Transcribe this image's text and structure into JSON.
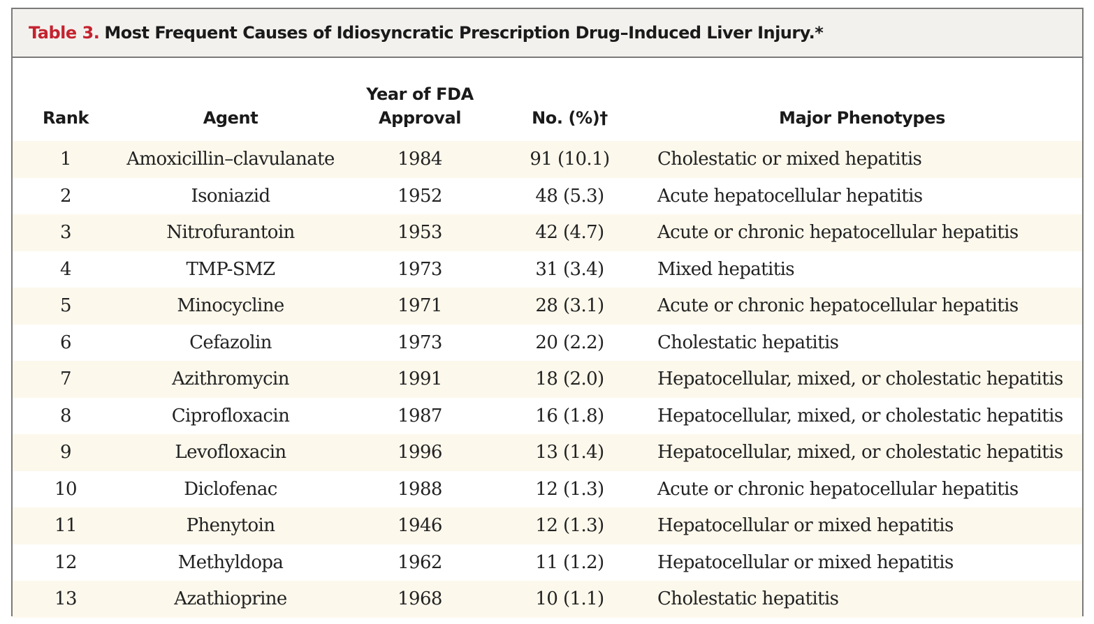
{
  "table": {
    "label": "Table 3.",
    "title": "Most Frequent Causes of Idiosyncratic Prescription Drug–Induced Liver Injury.*",
    "headers": {
      "rank": "Rank",
      "agent": "Agent",
      "year_line1": "Year of FDA",
      "year_line2": "Approval",
      "no": "No. (%)†",
      "phenotypes": "Major Phenotypes"
    },
    "rows": [
      {
        "rank": "1",
        "agent": "Amoxicillin–clavulanate",
        "year": "1984",
        "no": "91 (10.1)",
        "phenotype": "Cholestatic or mixed hepatitis"
      },
      {
        "rank": "2",
        "agent": "Isoniazid",
        "year": "1952",
        "no": "48 (5.3)",
        "phenotype": "Acute hepatocellular hepatitis"
      },
      {
        "rank": "3",
        "agent": "Nitrofurantoin",
        "year": "1953",
        "no": "42 (4.7)",
        "phenotype": "Acute or chronic hepatocellular hepatitis"
      },
      {
        "rank": "4",
        "agent": "TMP-SMZ",
        "year": "1973",
        "no": "31 (3.4)",
        "phenotype": "Mixed hepatitis"
      },
      {
        "rank": "5",
        "agent": "Minocycline",
        "year": "1971",
        "no": "28 (3.1)",
        "phenotype": "Acute or chronic hepatocellular hepatitis"
      },
      {
        "rank": "6",
        "agent": "Cefazolin",
        "year": "1973",
        "no": "20 (2.2)",
        "phenotype": "Cholestatic hepatitis"
      },
      {
        "rank": "7",
        "agent": "Azithromycin",
        "year": "1991",
        "no": "18 (2.0)",
        "phenotype": "Hepatocellular, mixed, or cholestatic hepatitis"
      },
      {
        "rank": "8",
        "agent": "Ciprofloxacin",
        "year": "1987",
        "no": "16 (1.8)",
        "phenotype": "Hepatocellular, mixed, or cholestatic hepatitis"
      },
      {
        "rank": "9",
        "agent": "Levofloxacin",
        "year": "1996",
        "no": "13 (1.4)",
        "phenotype": "Hepatocellular, mixed, or cholestatic hepatitis"
      },
      {
        "rank": "10",
        "agent": "Diclofenac",
        "year": "1988",
        "no": "12 (1.3)",
        "phenotype": "Acute or chronic hepatocellular hepatitis"
      },
      {
        "rank": "11",
        "agent": "Phenytoin",
        "year": "1946",
        "no": "12 (1.3)",
        "phenotype": "Hepatocellular or mixed hepatitis"
      },
      {
        "rank": "12",
        "agent": "Methyldopa",
        "year": "1962",
        "no": "11 (1.2)",
        "phenotype": "Hepatocellular or mixed hepatitis"
      },
      {
        "rank": "13",
        "agent": "Azathioprine",
        "year": "1968",
        "no": "10 (1.1)",
        "phenotype": "Cholestatic hepatitis"
      }
    ]
  },
  "colors": {
    "label_red": "#c4222f",
    "title_bar_bg": "#f3f1ee",
    "stripe": "#fcf8ec",
    "border": "#7a7a7a"
  }
}
